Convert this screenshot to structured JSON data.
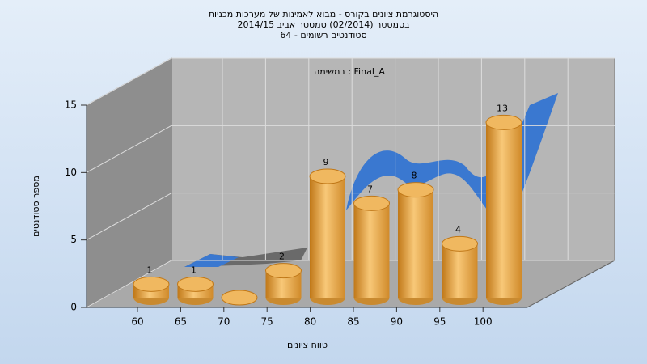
{
  "chart_data": {
    "type": "bar",
    "title": [
      "היסטוגרמת ציונים בקורס - מבוא לאמינות של מערכות מכניות",
      "בסמסטר  (02/2014)  סמסטר אביב 2014/15",
      "סטודנטים רשומים - 64"
    ],
    "annotation": "במשימה : Final_A",
    "x_label": "טווח ציונים",
    "y_label": "מספר סטודנטים",
    "categories": [
      "60",
      "65",
      "70",
      "75",
      "80",
      "85",
      "90",
      "95",
      "100"
    ],
    "values": [
      1,
      1,
      0,
      2,
      9,
      7,
      8,
      4,
      13
    ],
    "color": "#e8a040",
    "ylim": [
      0,
      15
    ],
    "yticks": [
      0,
      5,
      10,
      15
    ],
    "grid": true
  }
}
